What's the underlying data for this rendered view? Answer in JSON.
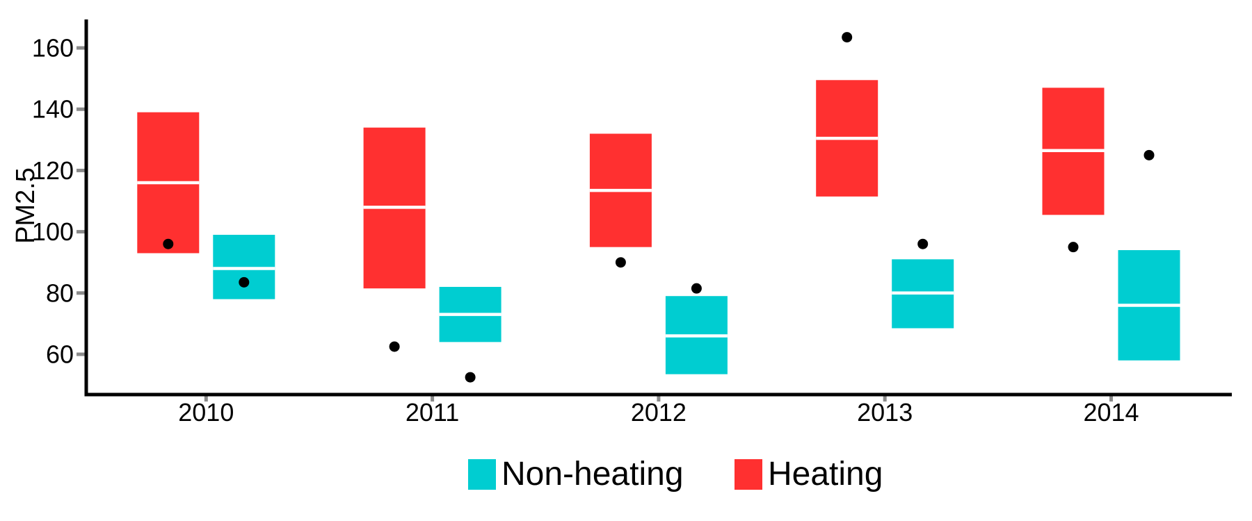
{
  "chart_data": {
    "type": "boxplot",
    "title": "",
    "xlabel": "",
    "ylabel": "PM2.5",
    "categories": [
      "2010",
      "2011",
      "2012",
      "2013",
      "2014"
    ],
    "y_ticks": [
      60,
      80,
      100,
      120,
      140,
      160
    ],
    "ylim": [
      48,
      169
    ],
    "grid": false,
    "legend_position": "bottom",
    "series": [
      {
        "name": "Heating",
        "color": "#FF3030",
        "boxes": [
          {
            "q1": 93,
            "median": 116,
            "q3": 139
          },
          {
            "q1": 81.5,
            "median": 108,
            "q3": 134
          },
          {
            "q1": 95,
            "median": 113.5,
            "q3": 132
          },
          {
            "q1": 111.5,
            "median": 130.5,
            "q3": 149.5
          },
          {
            "q1": 105.5,
            "median": 126.5,
            "q3": 147
          }
        ],
        "points": [
          96,
          62.5,
          90,
          163.5,
          95
        ]
      },
      {
        "name": "Non-heating",
        "color": "#00CDD1",
        "boxes": [
          {
            "q1": 78,
            "median": 88,
            "q3": 99
          },
          {
            "q1": 64,
            "median": 73,
            "q3": 82
          },
          {
            "q1": 53.5,
            "median": 66,
            "q3": 79
          },
          {
            "q1": 68.5,
            "median": 80,
            "q3": 91
          },
          {
            "q1": 58,
            "median": 76,
            "q3": 94
          }
        ],
        "points": [
          83.5,
          52.5,
          81.5,
          96,
          125
        ]
      }
    ],
    "legend": [
      {
        "label": "Non-heating",
        "color": "#00CDD1"
      },
      {
        "label": "Heating",
        "color": "#FF3030"
      }
    ],
    "colors": {
      "axis": "#000000",
      "tick_mark": "#8A8A8A",
      "tick_text": "#000000",
      "median_line": "#FFFFFF",
      "point": "#000000",
      "background": "#FFFFFF"
    }
  }
}
